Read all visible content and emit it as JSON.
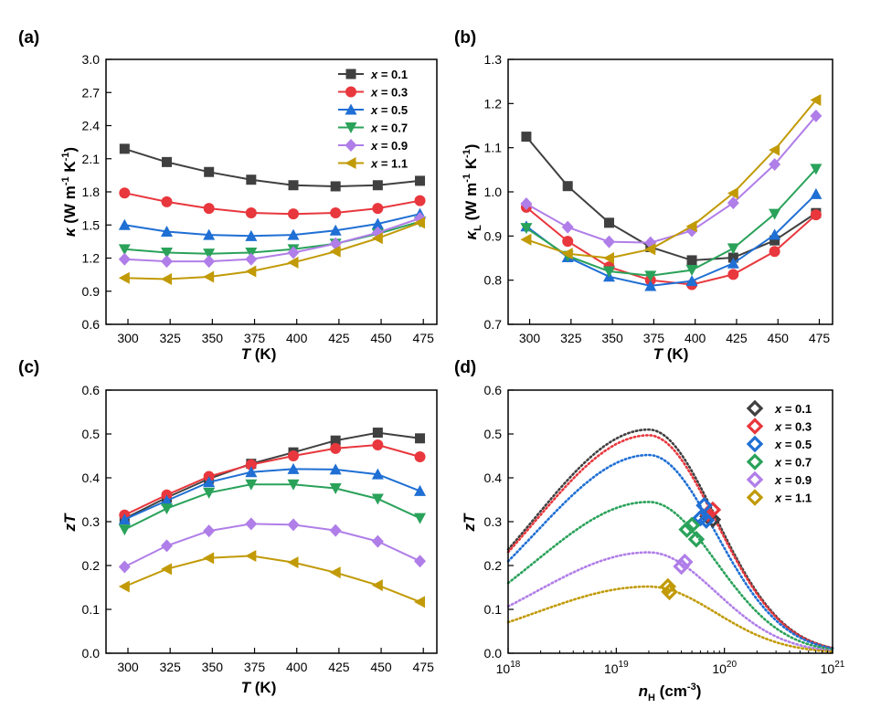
{
  "series_names": [
    "x = 0.1",
    "x = 0.3",
    "x = 0.5",
    "x = 0.7",
    "x = 0.9",
    "x = 1.1"
  ],
  "colors": [
    "#404040",
    "#e8373d",
    "#1f6fd4",
    "#2aa25a",
    "#b07ee8",
    "#c19a06"
  ],
  "chart_data": [
    {
      "id": "a",
      "panel_label": "(a)",
      "type": "line",
      "markers": [
        "square",
        "circle",
        "triangle-up",
        "triangle-down",
        "diamond",
        "triangle-left"
      ],
      "xlabel_main": "T",
      "xlabel_rest": " (K)",
      "ylabel_main": "κ",
      "ylabel_rest": " (W m",
      "ylabel_sup1": "-1",
      "ylabel_mid": " K",
      "ylabel_sup2": "-1",
      "ylabel_end": ")",
      "xlim": [
        287,
        483
      ],
      "ylim": [
        0.6,
        3.0
      ],
      "xticks": [
        300,
        325,
        350,
        375,
        400,
        425,
        450,
        475
      ],
      "xtick_labels": [
        "300",
        "325",
        "350",
        "375",
        "400",
        "425",
        "450",
        "475"
      ],
      "yticks": [
        0.6,
        0.9,
        1.2,
        1.5,
        1.8,
        2.1,
        2.4,
        2.7,
        3.0
      ],
      "ytick_labels": [
        "0.6",
        "0.9",
        "1.2",
        "1.5",
        "1.8",
        "2.1",
        "2.4",
        "2.7",
        "3.0"
      ],
      "legend": "top-right",
      "x": [
        298,
        323,
        348,
        373,
        398,
        423,
        448,
        473
      ],
      "series": [
        {
          "name": "x = 0.1",
          "values": [
            2.19,
            2.07,
            1.98,
            1.91,
            1.86,
            1.85,
            1.86,
            1.9
          ]
        },
        {
          "name": "x = 0.3",
          "values": [
            1.79,
            1.71,
            1.65,
            1.61,
            1.6,
            1.61,
            1.65,
            1.72
          ]
        },
        {
          "name": "x = 0.5",
          "values": [
            1.5,
            1.44,
            1.41,
            1.4,
            1.41,
            1.45,
            1.51,
            1.6
          ]
        },
        {
          "name": "x = 0.7",
          "values": [
            1.28,
            1.25,
            1.24,
            1.25,
            1.28,
            1.33,
            1.42,
            1.53
          ]
        },
        {
          "name": "x = 0.9",
          "values": [
            1.19,
            1.17,
            1.17,
            1.19,
            1.25,
            1.33,
            1.43,
            1.56
          ]
        },
        {
          "name": "x = 1.1",
          "values": [
            1.02,
            1.01,
            1.03,
            1.08,
            1.16,
            1.26,
            1.38,
            1.52
          ]
        }
      ]
    },
    {
      "id": "b",
      "panel_label": "(b)",
      "type": "line",
      "markers": [
        "square",
        "circle",
        "triangle-up",
        "triangle-down",
        "diamond",
        "triangle-left"
      ],
      "xlabel_main": "T",
      "xlabel_rest": " (K)",
      "ylabel_main": "κ",
      "ylabel_sub": "L",
      "ylabel_rest": " (W m",
      "ylabel_sup1": "-1",
      "ylabel_mid": " K",
      "ylabel_sup2": "-1",
      "ylabel_end": ")",
      "xlim": [
        287,
        483
      ],
      "ylim": [
        0.7,
        1.3
      ],
      "xticks": [
        300,
        325,
        350,
        375,
        400,
        425,
        450,
        475
      ],
      "xtick_labels": [
        "300",
        "325",
        "350",
        "375",
        "400",
        "425",
        "450",
        "475"
      ],
      "yticks": [
        0.7,
        0.8,
        0.9,
        1.0,
        1.1,
        1.2,
        1.3
      ],
      "ytick_labels": [
        "0.7",
        "0.8",
        "0.9",
        "1.0",
        "1.1",
        "1.2",
        "1.3"
      ],
      "legend": "none",
      "x": [
        298,
        323,
        348,
        373,
        398,
        423,
        448,
        473
      ],
      "series": [
        {
          "name": "x = 0.1",
          "values": [
            1.125,
            1.013,
            0.93,
            0.875,
            0.845,
            0.851,
            0.89,
            0.952
          ]
        },
        {
          "name": "x = 0.3",
          "values": [
            0.965,
            0.888,
            0.83,
            0.8,
            0.79,
            0.813,
            0.865,
            0.948
          ]
        },
        {
          "name": "x = 0.5",
          "values": [
            0.922,
            0.852,
            0.808,
            0.787,
            0.798,
            0.838,
            0.903,
            0.995
          ]
        },
        {
          "name": "x = 0.7",
          "values": [
            0.918,
            0.855,
            0.82,
            0.81,
            0.823,
            0.872,
            0.95,
            1.052
          ]
        },
        {
          "name": "x = 0.9",
          "values": [
            0.973,
            0.92,
            0.887,
            0.885,
            0.912,
            0.975,
            1.062,
            1.172
          ]
        },
        {
          "name": "x = 1.1",
          "values": [
            0.892,
            0.86,
            0.85,
            0.87,
            0.922,
            0.997,
            1.095,
            1.208
          ]
        }
      ]
    },
    {
      "id": "c",
      "panel_label": "(c)",
      "type": "line",
      "markers": [
        "square",
        "circle",
        "triangle-up",
        "triangle-down",
        "diamond",
        "triangle-left"
      ],
      "xlabel_main": "T",
      "xlabel_rest": " (K)",
      "ylabel_main": "zT",
      "xlim": [
        287,
        483
      ],
      "ylim": [
        0.0,
        0.6
      ],
      "xticks": [
        300,
        325,
        350,
        375,
        400,
        425,
        450,
        475
      ],
      "xtick_labels": [
        "300",
        "325",
        "350",
        "375",
        "400",
        "425",
        "450",
        "475"
      ],
      "yticks": [
        0.0,
        0.1,
        0.2,
        0.3,
        0.4,
        0.5,
        0.6
      ],
      "ytick_labels": [
        "0.0",
        "0.1",
        "0.2",
        "0.3",
        "0.4",
        "0.5",
        "0.6"
      ],
      "legend": "none",
      "x": [
        298,
        323,
        348,
        373,
        398,
        423,
        448,
        473
      ],
      "series": [
        {
          "name": "x = 0.1",
          "values": [
            0.307,
            0.355,
            0.398,
            0.432,
            0.458,
            0.485,
            0.503,
            0.49
          ]
        },
        {
          "name": "x = 0.3",
          "values": [
            0.315,
            0.361,
            0.403,
            0.43,
            0.45,
            0.467,
            0.475,
            0.448
          ]
        },
        {
          "name": "x = 0.5",
          "values": [
            0.305,
            0.348,
            0.39,
            0.413,
            0.42,
            0.419,
            0.408,
            0.37
          ]
        },
        {
          "name": "x = 0.7",
          "values": [
            0.282,
            0.33,
            0.366,
            0.385,
            0.385,
            0.376,
            0.352,
            0.308
          ]
        },
        {
          "name": "x = 0.9",
          "values": [
            0.197,
            0.245,
            0.279,
            0.295,
            0.293,
            0.28,
            0.255,
            0.21
          ]
        },
        {
          "name": "x = 1.1",
          "values": [
            0.152,
            0.192,
            0.217,
            0.222,
            0.207,
            0.184,
            0.155,
            0.117
          ]
        }
      ]
    },
    {
      "id": "d",
      "panel_label": "(d)",
      "type": "scatter",
      "markers": [
        "diamond-open",
        "diamond-open",
        "diamond-open",
        "diamond-open",
        "diamond-open",
        "diamond-open"
      ],
      "xlabel_main": "n",
      "xlabel_sub": "H",
      "xlabel_rest": " (cm",
      "xlabel_sup": "-3",
      "xlabel_end": ")",
      "xscale": "log",
      "xlim": [
        1e+18,
        1e+21
      ],
      "ylim": [
        0.0,
        0.6
      ],
      "xticks": [
        1e+18,
        1e+19,
        1e+20,
        1e+21
      ],
      "xtick_base": "10",
      "xtick_exps": [
        "18",
        "19",
        "20",
        "21"
      ],
      "ylabel_main": "zT",
      "yticks": [
        0.0,
        0.1,
        0.2,
        0.3,
        0.4,
        0.5,
        0.6
      ],
      "ytick_labels": [
        "0.0",
        "0.1",
        "0.2",
        "0.3",
        "0.4",
        "0.5",
        "0.6"
      ],
      "legend": "top-right",
      "curves": [
        {
          "name": "x = 0.1",
          "peak_n": 2e+19,
          "peak_zT": 0.51
        },
        {
          "name": "x = 0.3",
          "peak_n": 2e+19,
          "peak_zT": 0.497
        },
        {
          "name": "x = 0.5",
          "peak_n": 2e+19,
          "peak_zT": 0.452
        },
        {
          "name": "x = 0.7",
          "peak_n": 2e+19,
          "peak_zT": 0.345
        },
        {
          "name": "x = 0.9",
          "peak_n": 2e+19,
          "peak_zT": 0.23
        },
        {
          "name": "x = 1.1",
          "peak_n": 2e+19,
          "peak_zT": 0.152
        }
      ],
      "points": [
        {
          "name": "x = 0.1",
          "n": [
            7.8e+19,
            7e+19
          ],
          "zT": [
            0.305,
            0.312
          ]
        },
        {
          "name": "x = 0.3",
          "n": [
            7.8e+19,
            7e+19
          ],
          "zT": [
            0.327,
            0.318
          ]
        },
        {
          "name": "x = 0.5",
          "n": [
            6.5e+19,
            6e+19,
            6.8e+19
          ],
          "zT": [
            0.337,
            0.308,
            0.303
          ]
        },
        {
          "name": "x = 0.7",
          "n": [
            4.5e+19,
            5e+19,
            5.5e+19
          ],
          "zT": [
            0.282,
            0.292,
            0.26
          ]
        },
        {
          "name": "x = 0.9",
          "n": [
            4.3e+19,
            4e+19
          ],
          "zT": [
            0.208,
            0.198
          ]
        },
        {
          "name": "x = 1.1",
          "n": [
            3e+19,
            3.1e+19
          ],
          "zT": [
            0.152,
            0.14
          ]
        }
      ]
    }
  ]
}
